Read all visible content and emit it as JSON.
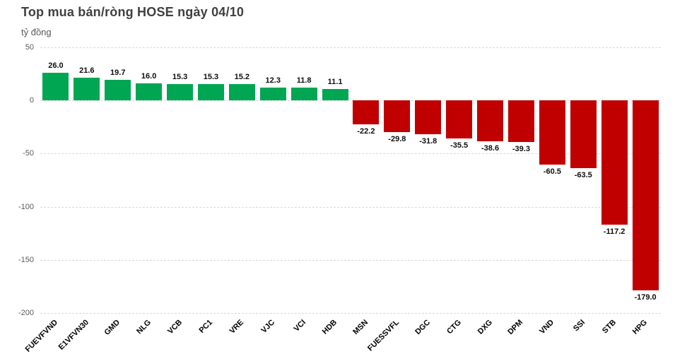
{
  "chart": {
    "title": "Top mua bán/ròng HOSE ngày 04/10",
    "unit_label": "tỷ đồng"
  },
  "chart_data": {
    "type": "bar",
    "title": "Top mua bán/ròng HOSE ngày 04/10",
    "xlabel": "",
    "ylabel": "tỷ đồng",
    "categories": [
      "FUEVFVND",
      "E1VFVN30",
      "GMD",
      "NLG",
      "VCB",
      "PC1",
      "VRE",
      "VJC",
      "VCI",
      "HDB",
      "MSN",
      "FUESSVFL",
      "DGC",
      "CTG",
      "DXG",
      "DPM",
      "VND",
      "SSI",
      "STB",
      "HPG"
    ],
    "values": [
      26.0,
      21.6,
      19.7,
      16.0,
      15.3,
      15.3,
      15.2,
      12.3,
      11.8,
      11.1,
      -22.2,
      -29.8,
      -31.8,
      -35.5,
      -38.6,
      -39.3,
      -60.5,
      -63.5,
      -117.2,
      -179.0
    ],
    "value_label_decimals": 1,
    "ylim": [
      -200,
      50
    ],
    "yticks": [
      50,
      0,
      -50,
      -100,
      -150,
      -200
    ],
    "grid": true,
    "gridline_style": "dashed",
    "legend_position": "none",
    "colors": {
      "positive": "#00A651",
      "negative": "#C00000",
      "title": "#404040",
      "axis_text": "#595959",
      "gridline": "#d9d9d9",
      "value_text": "#0d0d0d"
    }
  }
}
